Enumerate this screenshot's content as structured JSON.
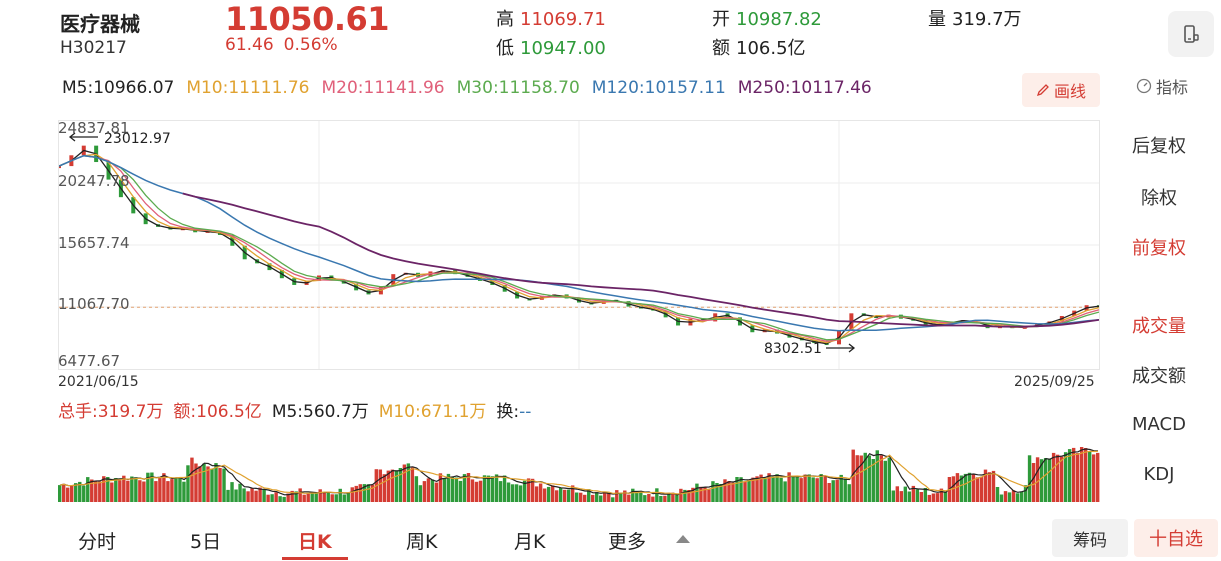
{
  "stock": {
    "name": "医疗器械",
    "code": "H30217",
    "price": "11050.61",
    "change": "61.46",
    "change_pct": "0.56%"
  },
  "stats": {
    "high_label": "高",
    "high": "11069.71",
    "low_label": "低",
    "low": "10947.00",
    "open_label": "开",
    "open": "10987.82",
    "amount_label": "额",
    "amount": "106.5亿",
    "volume_label": "量",
    "volume": "319.7万"
  },
  "ma": {
    "m5": "M5:10966.07",
    "m10": "M10:11111.76",
    "m20": "M20:11141.96",
    "m30": "M30:11158.70",
    "m120": "M120:10157.11",
    "m250": "M250:10117.46"
  },
  "toolbar": {
    "draw_label": "画线",
    "indicator_label": "指标"
  },
  "chart_data": {
    "type": "line",
    "y_ticks": [
      "24837.81",
      "20247.78",
      "15657.74",
      "11067.70",
      "6477.67"
    ],
    "ylim": [
      6477.67,
      24837.81
    ],
    "x_start": "2021/06/15",
    "x_end": "2025/09/25",
    "annotations": {
      "max_label": "23012.97",
      "min_label": "8302.51"
    },
    "price_series": [
      21500,
      22300,
      23013,
      21800,
      20500,
      19200,
      18000,
      17200,
      17000,
      16800,
      16900,
      16600,
      16700,
      16400,
      15600,
      14600,
      14300,
      13800,
      13200,
      12700,
      13000,
      13400,
      13100,
      12800,
      12300,
      12000,
      12600,
      13500,
      13600,
      13300,
      13700,
      13800,
      13500,
      13300,
      13000,
      12700,
      12200,
      11700,
      11600,
      11900,
      12000,
      11700,
      11400,
      11300,
      11600,
      11500,
      11100,
      11000,
      10800,
      10300,
      9700,
      10200,
      10000,
      10600,
      10300,
      9700,
      9200,
      9400,
      9100,
      8800,
      8600,
      8400,
      8303,
      9300,
      10600,
      10400,
      10300,
      10500,
      10200,
      10100,
      9700,
      9800,
      10000,
      10100,
      9900,
      9500,
      9700,
      9500,
      9600,
      9800,
      10000,
      10400,
      10800,
      11200,
      11050
    ],
    "volume_label": "总手:319.7万",
    "amount_label": "额:106.5亿",
    "vol_m5": "M5:560.7万",
    "vol_m10": "M10:671.1万",
    "turnover_label": "换:",
    "turnover_value": "--"
  },
  "colors": {
    "up": "#d43c33",
    "down": "#2e9a3a",
    "m5": "#222222",
    "m10": "#e0a230",
    "m20": "#e0607a",
    "m30": "#5cab4f",
    "m120": "#3a78b0",
    "m250": "#6b2466"
  },
  "side_menu": {
    "back_adjust": "后复权",
    "ex_right": "除权",
    "front_adjust": "前复权",
    "volume": "成交量",
    "amount": "成交额",
    "macd": "MACD",
    "kdj": "KDJ"
  },
  "tabs": {
    "intraday": "分时",
    "five_day": "5日",
    "day_k": "日K",
    "week_k": "周K",
    "month_k": "月K",
    "more": "更多"
  },
  "bottom": {
    "chip_label": "筹码",
    "favorite_label": "十自选"
  }
}
